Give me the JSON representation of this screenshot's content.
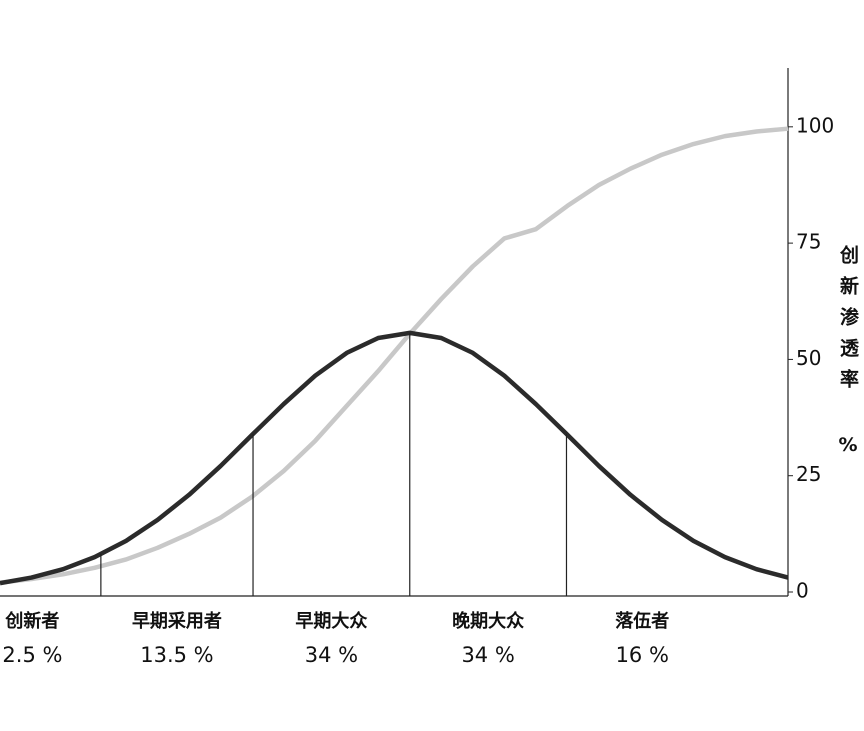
{
  "chart_data": {
    "type": "line",
    "y_label": "创新渗透率 %",
    "categories": [
      "创新者",
      "早期采用者",
      "早期大众",
      "晚期大众",
      "落伍者"
    ],
    "values": [
      2.5,
      13.5,
      34,
      34,
      16
    ],
    "value_labels": [
      "2.5 %",
      "13.5 %",
      "34 %",
      "34 %",
      "16 %"
    ],
    "x": [
      -2.6,
      -2.4,
      -2.2,
      -2.0,
      -1.8,
      -1.6,
      -1.4,
      -1.2,
      -1.0,
      -0.8,
      -0.6,
      -0.4,
      -0.2,
      0,
      0.2,
      0.4,
      0.6,
      0.8,
      1.0,
      1.2,
      1.4,
      1.6,
      1.8,
      2.0,
      2.2,
      2.4
    ],
    "series": [
      {
        "color": "#2b2b2b",
        "values": [
          1.9,
          3.1,
          4.9,
          7.5,
          11.0,
          15.5,
          20.9,
          27.1,
          33.8,
          40.4,
          46.5,
          51.4,
          54.6,
          55.7,
          54.6,
          51.4,
          46.5,
          40.4,
          33.8,
          27.1,
          20.9,
          15.5,
          11.0,
          7.5,
          4.9,
          3.1
        ]
      },
      {
        "color": "#c8c8c8",
        "values": [
          2,
          2.8,
          3.8,
          5.2,
          7,
          9.5,
          12.5,
          16,
          20.5,
          26,
          32.5,
          40,
          47.5,
          55.5,
          63,
          70,
          76,
          78,
          83,
          87.5,
          91,
          94,
          96.3,
          98,
          99,
          99.6
        ]
      }
    ],
    "ylim": [
      0,
      112
    ],
    "yticks": [
      0,
      25,
      50,
      75,
      100
    ]
  }
}
